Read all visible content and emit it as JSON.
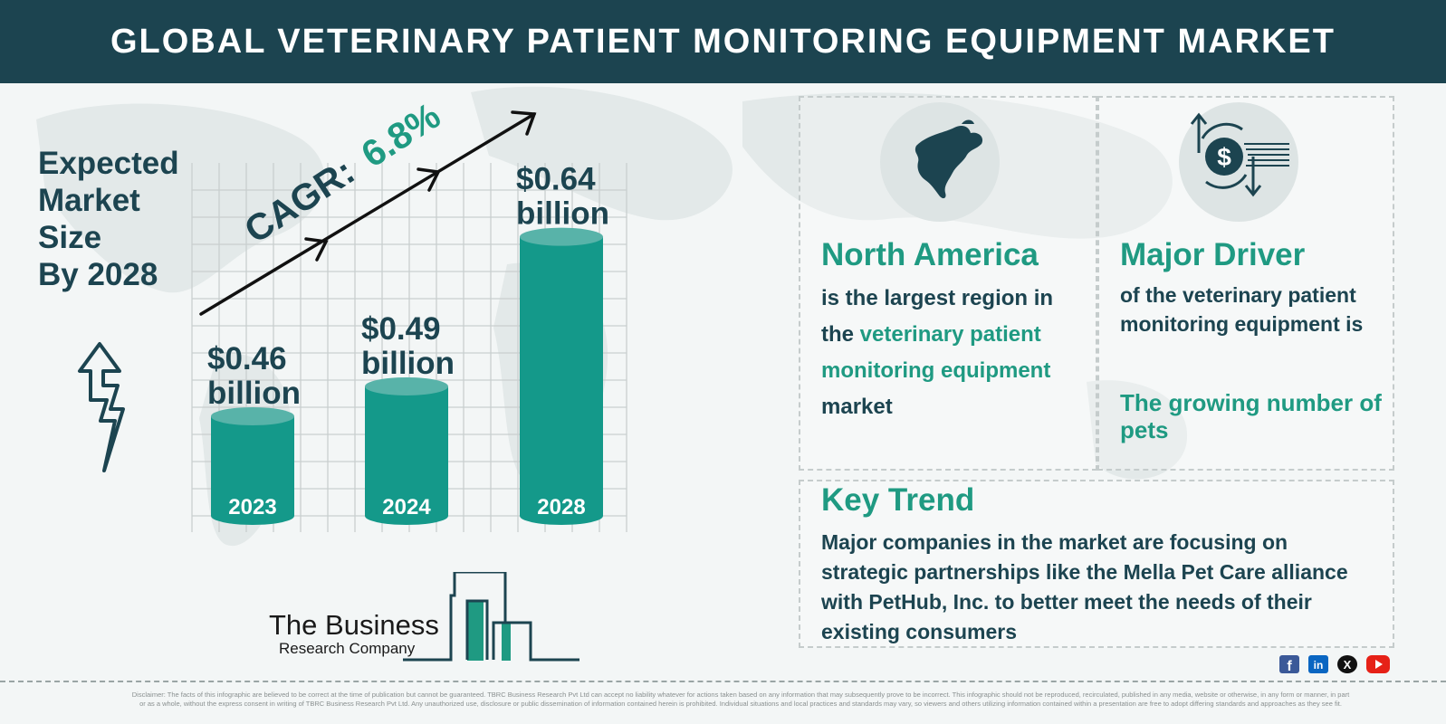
{
  "header": {
    "title": "GLOBAL VETERINARY PATIENT MONITORING EQUIPMENT MARKET"
  },
  "expected": {
    "lines": [
      "Expected",
      "Market",
      "Size",
      "By 2028"
    ]
  },
  "chart_data": {
    "type": "bar",
    "categories": [
      "2023",
      "2024",
      "2028"
    ],
    "values": [
      0.46,
      0.49,
      0.64
    ],
    "value_labels": [
      {
        "amount": "$0.46",
        "unit": "billion"
      },
      {
        "amount": "$0.49",
        "unit": "billion"
      },
      {
        "amount": "$0.64",
        "unit": "billion"
      }
    ],
    "cagr_label": "CAGR:",
    "cagr_value": "6.8%",
    "bar_color": "#14998a",
    "bar_top_color": "#58b3a9",
    "grid": true
  },
  "logo": {
    "name": "The Business",
    "subtitle": "Research Company"
  },
  "region": {
    "heading": "North America",
    "line1": "is the largest region in",
    "line2_prefix": "the ",
    "line2_highlight": "veterinary patient",
    "line3_highlight": "monitoring equipment",
    "line4": "market",
    "icon": "north-america-map-icon"
  },
  "driver": {
    "heading": "Major Driver",
    "line1": "of the veterinary patient",
    "line2": "monitoring equipment is",
    "highlight_line1": "The growing number of",
    "highlight_line2": "pets",
    "icon": "dollar-exchange-icon"
  },
  "trend": {
    "heading": "Key Trend",
    "lines": [
      "Major companies in the market are focusing on",
      "strategic partnerships like the Mella Pet Care alliance",
      "with PetHub, Inc. to better meet the needs of their",
      "existing consumers"
    ]
  },
  "social": {
    "icons": [
      "facebook-icon",
      "linkedin-icon",
      "x-icon",
      "youtube-icon"
    ],
    "colors": [
      "#3b5998",
      "#0a66c2",
      "#111111",
      "#e62117"
    ]
  },
  "footer": {
    "disclaimer_line1": "Disclaimer: The facts of this infographic are believed to be correct at the time of publication but cannot be guaranteed. TBRC Business Research Pvt Ltd can accept no liability whatever for actions taken based on any information that may subsequently prove to be incorrect. This infographic should not be reproduced, recirculated, published in any media, website or otherwise, in any form or manner, in part",
    "disclaimer_line2": "or as a whole, without the express consent in writing of TBRC Business Research Pvt Ltd. Any unauthorized use, disclosure or public dissemination of information contained herein is prohibited. Individual situations and local practices and standards may vary, so viewers and others utilizing information contained within a presentation are free to adopt differing standards and approaches as they see fit."
  }
}
